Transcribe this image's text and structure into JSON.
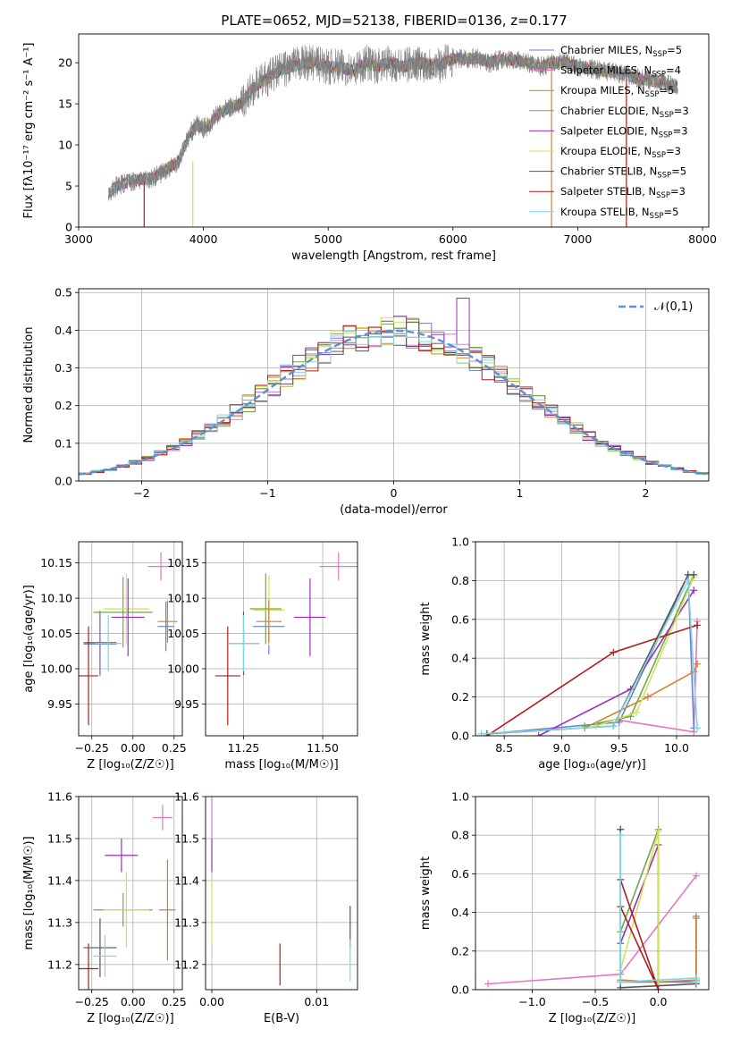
{
  "figure": {
    "title": "PLATE=0652, MJD=52138, FIBERID=0136, z=0.177"
  },
  "chart_data": [
    {
      "id": "spectrum",
      "type": "line",
      "xlabel": "wavelength [Angstrom, rest frame]",
      "ylabel": "Flux [fλ10⁻¹⁷ erg cm⁻² s⁻¹ A⁻¹]",
      "xlim": [
        3000,
        8050
      ],
      "ylim": [
        0,
        23.5
      ],
      "xticks": [
        3000,
        4000,
        5000,
        6000,
        7000,
        8000
      ],
      "yticks": [
        0,
        5,
        10,
        15,
        20
      ],
      "data_curve": {
        "name": "data",
        "x": [
          3240,
          3300,
          3400,
          3500,
          3600,
          3700,
          3800,
          3850,
          3900,
          3950,
          4000,
          4050,
          4100,
          4200,
          4300,
          4400,
          4500,
          4600,
          4700,
          4800,
          4900,
          5000,
          5100,
          5200,
          5300,
          5400,
          5500,
          5600,
          5700,
          5800,
          5900,
          6000,
          6100,
          6200,
          6300,
          6400,
          6500,
          6600,
          6700,
          6800,
          6900,
          7000,
          7100,
          7200,
          7300,
          7400,
          7500,
          7600,
          7700,
          7800
        ],
        "y": [
          4.0,
          5.0,
          5.5,
          5.8,
          6.0,
          7.0,
          8.0,
          10.0,
          11.5,
          12.5,
          12.0,
          12.5,
          13.5,
          14.5,
          15.0,
          17.0,
          18.0,
          19.0,
          19.5,
          20.0,
          20.0,
          19.5,
          19.5,
          19.0,
          20.0,
          19.5,
          20.0,
          19.5,
          20.0,
          19.8,
          19.8,
          20.5,
          20.5,
          20.5,
          20.0,
          20.5,
          20.3,
          20.0,
          19.5,
          20.0,
          20.0,
          19.5,
          19.3,
          19.0,
          18.8,
          18.5,
          18.0,
          17.8,
          17.5,
          17.0
        ]
      },
      "dips": [
        {
          "series": "Salpeter STELIB",
          "x": 3525,
          "y_top": 5.5
        },
        {
          "series": "Kroupa ELODIE",
          "x": 3915,
          "y_top": 8.0
        },
        {
          "series": "Kroupa MILES",
          "x": 6790,
          "y_top": 19.0
        },
        {
          "series": "Salpeter STELIB",
          "x": 7390,
          "y_top": 18.0
        }
      ],
      "legend": [
        {
          "name": "Chabrier MILES, N",
          "sub": "SSP",
          "val": "=5",
          "color": "#6a7fd0"
        },
        {
          "name": "Salpeter MILES, N",
          "sub": "SSP",
          "val": "=4",
          "color": "#e377c2"
        },
        {
          "name": "Kroupa MILES, N",
          "sub": "SSP",
          "val": "=5",
          "color": "#d2812b"
        },
        {
          "name": "Chabrier ELODIE, N",
          "sub": "SSP",
          "val": "=3",
          "color": "#6ea84c"
        },
        {
          "name": "Salpeter ELODIE, N",
          "sub": "SSP",
          "val": "=3",
          "color": "#9c2db8"
        },
        {
          "name": "Kroupa ELODIE, N",
          "sub": "SSP",
          "val": "=3",
          "color": "#d4e157"
        },
        {
          "name": "Chabrier STELIB, N",
          "sub": "SSP",
          "val": "=5",
          "color": "#555555"
        },
        {
          "name": "Salpeter STELIB, N",
          "sub": "SSP",
          "val": "=3",
          "color": "#b01c1c"
        },
        {
          "name": "Kroupa STELIB, N",
          "sub": "SSP",
          "val": "=5",
          "color": "#7fd6dd"
        }
      ],
      "legend_placement": "right"
    },
    {
      "id": "residuals",
      "type": "line",
      "xlabel": "(data-model)/error",
      "ylabel": "Normed distribution",
      "xlim": [
        -2.5,
        2.5
      ],
      "ylim": [
        0,
        0.51
      ],
      "xticks": [
        -2,
        -1,
        0,
        1,
        2
      ],
      "yticks": [
        0.0,
        0.1,
        0.2,
        0.3,
        0.4,
        0.5
      ],
      "grid": true,
      "gaussian": {
        "name": "𝒩(0,1)",
        "color": "#5b8fd6"
      },
      "bin_width": 0.1,
      "legend_placement": "top-right"
    },
    {
      "id": "age-vs-Z",
      "type": "scatter",
      "xlabel": "Z [log₁₀(Z/Z☉)]",
      "ylabel": "age [log₁₀(age/yr)]",
      "xlim": [
        -0.33,
        0.3
      ],
      "ylim": [
        9.905,
        10.18
      ],
      "xticks": [
        -0.25,
        0.0,
        0.25
      ],
      "yticks": [
        9.95,
        10.0,
        10.05,
        10.1,
        10.15
      ],
      "grid": true,
      "points": [
        {
          "x": -0.2,
          "y": 10.037,
          "xerr": 0.1,
          "yerr": 0.045,
          "color": "#555555"
        },
        {
          "x": -0.2,
          "y": 10.035,
          "xerr": 0.1,
          "yerr": 0.045,
          "color": "#6a7fd0"
        },
        {
          "x": -0.15,
          "y": 10.036,
          "xerr": 0.08,
          "yerr": 0.04,
          "color": "#7fd6dd"
        },
        {
          "x": -0.27,
          "y": 9.99,
          "xerr": 0.06,
          "yerr": 0.07,
          "color": "#b01c1c"
        },
        {
          "x": -0.06,
          "y": 10.08,
          "xerr": 0.18,
          "yerr": 0.05,
          "color": "#6ea84c"
        },
        {
          "x": -0.04,
          "y": 10.085,
          "xerr": 0.14,
          "yerr": 0.05,
          "color": "#d4e157"
        },
        {
          "x": -0.03,
          "y": 10.073,
          "xerr": 0.1,
          "yerr": 0.055,
          "color": "#9c2db8"
        },
        {
          "x": 0.21,
          "y": 10.067,
          "xerr": 0.06,
          "yerr": 0.03,
          "color": "#d2812b"
        },
        {
          "x": 0.2,
          "y": 10.06,
          "xerr": 0.05,
          "yerr": 0.035,
          "color": "#6a7fd0"
        },
        {
          "x": 0.17,
          "y": 10.145,
          "xerr": 0.08,
          "yerr": 0.02,
          "color": "#e377c2"
        }
      ]
    },
    {
      "id": "age-vs-mass",
      "type": "scatter",
      "xlabel": "mass [log₁₀(M/M☉)]",
      "ylabel": "",
      "xlim": [
        11.13,
        11.61
      ],
      "ylim": [
        9.905,
        10.18
      ],
      "xticks": [
        11.25,
        11.5
      ],
      "yticks": [
        9.95,
        10.0,
        10.05,
        10.1,
        10.15
      ],
      "grid": true,
      "points": [
        {
          "x": 11.2,
          "y": 9.99,
          "xerr": 0.04,
          "yerr": 0.07,
          "color": "#b01c1c"
        },
        {
          "x": 11.25,
          "y": 10.036,
          "xerr": 0.05,
          "yerr": 0.045,
          "color": "#555555"
        },
        {
          "x": 11.25,
          "y": 10.036,
          "xerr": 0.05,
          "yerr": 0.04,
          "color": "#7fd6dd"
        },
        {
          "x": 11.33,
          "y": 10.06,
          "xerr": 0.05,
          "yerr": 0.04,
          "color": "#6a7fd0"
        },
        {
          "x": 11.32,
          "y": 10.085,
          "xerr": 0.05,
          "yerr": 0.05,
          "color": "#6ea84c"
        },
        {
          "x": 11.33,
          "y": 10.083,
          "xerr": 0.05,
          "yerr": 0.05,
          "color": "#d4e157"
        },
        {
          "x": 11.33,
          "y": 10.067,
          "xerr": 0.04,
          "yerr": 0.03,
          "color": "#d2812b"
        },
        {
          "x": 11.46,
          "y": 10.073,
          "xerr": 0.05,
          "yerr": 0.055,
          "color": "#9c2db8"
        },
        {
          "x": 11.55,
          "y": 10.145,
          "xerr": 0.06,
          "yerr": 0.02,
          "color": "#e377c2"
        }
      ]
    },
    {
      "id": "mass-weight-vs-age",
      "type": "line",
      "xlabel": "age [log₁₀(age/yr)]",
      "ylabel": "mass weight",
      "xlim": [
        8.25,
        10.28
      ],
      "ylim": [
        0,
        1.0
      ],
      "xticks": [
        8.5,
        9.0,
        9.5,
        10.0
      ],
      "yticks": [
        0.0,
        0.2,
        0.4,
        0.6,
        0.8,
        1.0
      ],
      "grid": true,
      "series": [
        {
          "color": "#e377c2",
          "x": [
            9.5,
            10.15,
            10.18
          ],
          "y": [
            0.08,
            0.02,
            0.59
          ]
        },
        {
          "color": "#6a7fd0",
          "x": [
            8.35,
            9.5,
            10.1,
            10.15
          ],
          "y": [
            0.01,
            0.07,
            0.83,
            0.04
          ]
        },
        {
          "color": "#d2812b",
          "x": [
            9.2,
            9.75,
            10.15,
            10.18
          ],
          "y": [
            0.04,
            0.2,
            0.33,
            0.37
          ]
        },
        {
          "color": "#6ea84c",
          "x": [
            9.2,
            9.6,
            10.15
          ],
          "y": [
            0.05,
            0.1,
            0.83
          ]
        },
        {
          "color": "#9c2db8",
          "x": [
            8.8,
            9.6,
            10.15
          ],
          "y": [
            0.0,
            0.24,
            0.75
          ]
        },
        {
          "color": "#d4e157",
          "x": [
            9.3,
            9.65,
            10.15
          ],
          "y": [
            0.05,
            0.12,
            0.82
          ]
        },
        {
          "color": "#555555",
          "x": [
            8.35,
            9.45,
            10.1,
            10.15
          ],
          "y": [
            0.01,
            0.05,
            0.83,
            0.83
          ]
        },
        {
          "color": "#b01c1c",
          "x": [
            8.35,
            9.45,
            10.18
          ],
          "y": [
            0.0,
            0.43,
            0.57
          ]
        },
        {
          "color": "#7fd6dd",
          "x": [
            8.3,
            9.45,
            10.1,
            10.18
          ],
          "y": [
            0.01,
            0.05,
            0.8,
            0.04
          ]
        }
      ]
    },
    {
      "id": "mass-vs-Z",
      "type": "scatter",
      "xlabel": "Z [log₁₀(Z/Z☉)]",
      "ylabel": "mass [log₁₀(M/M☉)]",
      "xlim": [
        -0.33,
        0.3
      ],
      "ylim": [
        11.14,
        11.6
      ],
      "xticks": [
        -0.25,
        0.0,
        0.25
      ],
      "yticks": [
        11.2,
        11.3,
        11.4,
        11.5,
        11.6
      ],
      "grid": true,
      "points": [
        {
          "x": -0.27,
          "y": 11.19,
          "xerr": 0.06,
          "yerr": 0.06,
          "color": "#b01c1c"
        },
        {
          "x": -0.2,
          "y": 11.24,
          "xerr": 0.1,
          "yerr": 0.07,
          "color": "#555555"
        },
        {
          "x": -0.17,
          "y": 11.22,
          "xerr": 0.07,
          "yerr": 0.05,
          "color": "#7fd6dd"
        },
        {
          "x": -0.06,
          "y": 11.33,
          "xerr": 0.18,
          "yerr": 0.04,
          "color": "#6ea84c"
        },
        {
          "x": -0.04,
          "y": 11.33,
          "xerr": 0.14,
          "yerr": 0.09,
          "color": "#d4e157"
        },
        {
          "x": -0.07,
          "y": 11.46,
          "xerr": 0.1,
          "yerr": 0.04,
          "color": "#9c2db8"
        },
        {
          "x": 0.21,
          "y": 11.33,
          "xerr": 0.05,
          "yerr": 0.12,
          "color": "#d2812b"
        },
        {
          "x": 0.18,
          "y": 11.55,
          "xerr": 0.06,
          "yerr": 0.03,
          "color": "#e377c2"
        }
      ]
    },
    {
      "id": "mass-vs-ebv",
      "type": "scatter",
      "xlabel": "E(B-V)",
      "ylabel": "",
      "xlim": [
        -0.0006,
        0.0139
      ],
      "ylim": [
        11.14,
        11.6
      ],
      "xticks": [
        0.0,
        0.01
      ],
      "yticks": [
        11.2,
        11.3,
        11.4,
        11.5,
        11.6
      ],
      "grid": true,
      "points": [
        {
          "x": 0.0,
          "y": 11.33,
          "xerr": 0,
          "yerr": 0.08,
          "color": "#d4e157"
        },
        {
          "x": 0.0,
          "y": 11.46,
          "xerr": 0,
          "yerr": 0.04,
          "color": "#9c2db8"
        },
        {
          "x": 0.0,
          "y": 11.55,
          "xerr": 0,
          "yerr": 0.05,
          "color": "#e377c2"
        },
        {
          "x": 0.0065,
          "y": 11.2,
          "xerr": 0,
          "yerr": 0.05,
          "color": "#b01c1c"
        },
        {
          "x": 0.0132,
          "y": 11.29,
          "xerr": 0,
          "yerr": 0.05,
          "color": "#555555"
        },
        {
          "x": 0.0132,
          "y": 11.21,
          "xerr": 0,
          "yerr": 0.05,
          "color": "#7fd6dd"
        }
      ]
    },
    {
      "id": "mass-weight-vs-Z",
      "type": "line",
      "xlabel": "Z [log₁₀(Z/Z☉)]",
      "ylabel": "mass weight",
      "xlim": [
        -1.45,
        0.4
      ],
      "ylim": [
        0,
        1.0
      ],
      "xticks": [
        -1.0,
        -0.5,
        0.0
      ],
      "yticks": [
        0.0,
        0.2,
        0.4,
        0.6,
        0.8,
        1.0
      ],
      "grid": true,
      "series": [
        {
          "color": "#e377c2",
          "x": [
            -1.35,
            -0.3,
            0.3
          ],
          "y": [
            0.03,
            0.08,
            0.59
          ]
        },
        {
          "color": "#6a7fd0",
          "x": [
            -0.3,
            -0.3,
            0.3,
            0.3
          ],
          "y": [
            0.83,
            0.04,
            0.04,
            0.38
          ]
        },
        {
          "color": "#d2812b",
          "x": [
            -0.3,
            0.0,
            0.3,
            0.3
          ],
          "y": [
            0.05,
            0.04,
            0.05,
            0.37
          ]
        },
        {
          "color": "#6ea84c",
          "x": [
            -0.3,
            0.0,
            0.0
          ],
          "y": [
            0.3,
            0.83,
            0.0
          ]
        },
        {
          "color": "#9c2db8",
          "x": [
            -0.3,
            0.0,
            0.0
          ],
          "y": [
            0.24,
            0.75,
            0.0
          ]
        },
        {
          "color": "#d4e157",
          "x": [
            -0.3,
            0.0,
            0.0
          ],
          "y": [
            0.1,
            0.82,
            0.0
          ]
        },
        {
          "color": "#555555",
          "x": [
            -0.3,
            -0.3,
            0.3
          ],
          "y": [
            0.83,
            0.01,
            0.03
          ]
        },
        {
          "color": "#b01c1c",
          "x": [
            -0.3,
            0.0,
            -0.3
          ],
          "y": [
            0.57,
            0.0,
            0.43
          ]
        },
        {
          "color": "#7fd6dd",
          "x": [
            -0.3,
            -0.3,
            0.3,
            0.3
          ],
          "y": [
            0.8,
            0.04,
            0.06,
            0.04
          ]
        }
      ]
    }
  ]
}
